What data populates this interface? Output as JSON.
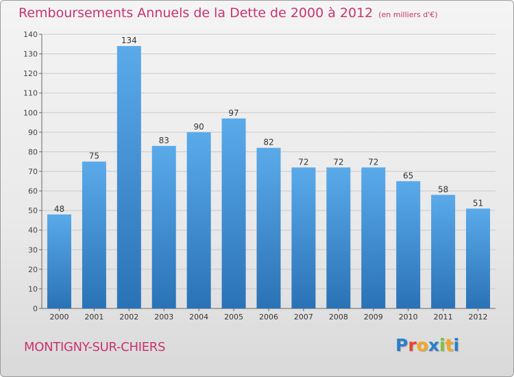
{
  "title": "Remboursements Annuels de la Dette de 2000 à 2012",
  "subtitle": "(en milliers d'€)",
  "location": "MONTIGNY-SUR-CHIERS",
  "logo": {
    "letters": [
      "P",
      "r",
      "o",
      "x",
      "i",
      "t",
      "i"
    ]
  },
  "colors": {
    "bar_light": "#5aaaea",
    "bar_dark": "#2a72b6",
    "title": "#c8326e"
  },
  "chart_data": {
    "type": "bar",
    "title": "Remboursements Annuels de la Dette de 2000 à 2012",
    "subtitle": "(en milliers d'€)",
    "xlabel": "",
    "ylabel": "",
    "categories": [
      "2000",
      "2001",
      "2002",
      "2003",
      "2004",
      "2005",
      "2006",
      "2007",
      "2008",
      "2009",
      "2010",
      "2011",
      "2012"
    ],
    "values": [
      48,
      75,
      134,
      83,
      90,
      97,
      82,
      72,
      72,
      72,
      65,
      58,
      51
    ],
    "ylim": [
      0,
      140
    ],
    "yticks": [
      0,
      10,
      20,
      30,
      40,
      50,
      60,
      70,
      80,
      90,
      100,
      110,
      120,
      130,
      140
    ],
    "grid": true,
    "data_labels": true
  }
}
